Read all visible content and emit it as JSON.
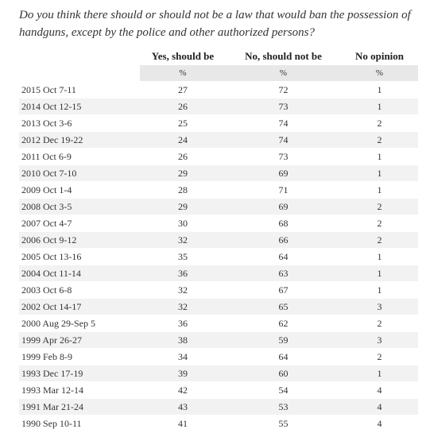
{
  "question": "Do you think there should or should not be a law that would ban the possession of handguns, except by the police and other authorized persons?",
  "columns": {
    "date": "",
    "yes": "Yes, should be",
    "no": "No, should not be",
    "no_opinion": "No opinion"
  },
  "units": {
    "yes": "%",
    "no": "%",
    "no_opinion": "%"
  },
  "chart_data": {
    "type": "table",
    "title": "Do you think there should or should not be a law that would ban the possession of handguns, except by the police and other authorized persons?",
    "columns": [
      "",
      "Yes, should be",
      "No, should not be",
      "No opinion"
    ],
    "unit": "%",
    "rows": [
      {
        "date": "2015 Oct 7-11",
        "yes": 27,
        "no": 72,
        "no_opinion": 1
      },
      {
        "date": "2014 Oct 12-15",
        "yes": 26,
        "no": 73,
        "no_opinion": 1
      },
      {
        "date": "2013 Oct 3-6",
        "yes": 25,
        "no": 74,
        "no_opinion": 2
      },
      {
        "date": "2012 Dec 19-22",
        "yes": 24,
        "no": 74,
        "no_opinion": 2
      },
      {
        "date": "2011 Oct 6-9",
        "yes": 26,
        "no": 73,
        "no_opinion": 1
      },
      {
        "date": "2010 Oct 7-10",
        "yes": 29,
        "no": 69,
        "no_opinion": 1
      },
      {
        "date": "2009 Oct 1-4",
        "yes": 28,
        "no": 71,
        "no_opinion": 1
      },
      {
        "date": "2008 Oct 3-5",
        "yes": 29,
        "no": 69,
        "no_opinion": 2
      },
      {
        "date": "2007 Oct 4-7",
        "yes": 30,
        "no": 68,
        "no_opinion": 2
      },
      {
        "date": "2006 Oct 9-12",
        "yes": 32,
        "no": 66,
        "no_opinion": 2
      },
      {
        "date": "2005 Oct 13-16",
        "yes": 35,
        "no": 64,
        "no_opinion": 1
      },
      {
        "date": "2004 Oct 11-14",
        "yes": 36,
        "no": 63,
        "no_opinion": 1
      },
      {
        "date": "2003 Oct 6-8",
        "yes": 32,
        "no": 67,
        "no_opinion": 1
      },
      {
        "date": "2002 Oct 14-17",
        "yes": 32,
        "no": 65,
        "no_opinion": 3
      },
      {
        "date": "2000 Aug 29-Sep 5",
        "yes": 36,
        "no": 62,
        "no_opinion": 2
      },
      {
        "date": "1999 Apr 26-27",
        "yes": 38,
        "no": 59,
        "no_opinion": 3
      },
      {
        "date": "1999 Feb 8-9",
        "yes": 34,
        "no": 64,
        "no_opinion": 2
      },
      {
        "date": "1993 Dec 17-19",
        "yes": 39,
        "no": 60,
        "no_opinion": 1
      },
      {
        "date": "1993 Mar 12-14",
        "yes": 42,
        "no": 54,
        "no_opinion": 4
      },
      {
        "date": "1991 Mar 21-24",
        "yes": 43,
        "no": 53,
        "no_opinion": 4
      },
      {
        "date": "1990 Sep 10-11",
        "yes": 41,
        "no": 55,
        "no_opinion": 4
      }
    ]
  }
}
